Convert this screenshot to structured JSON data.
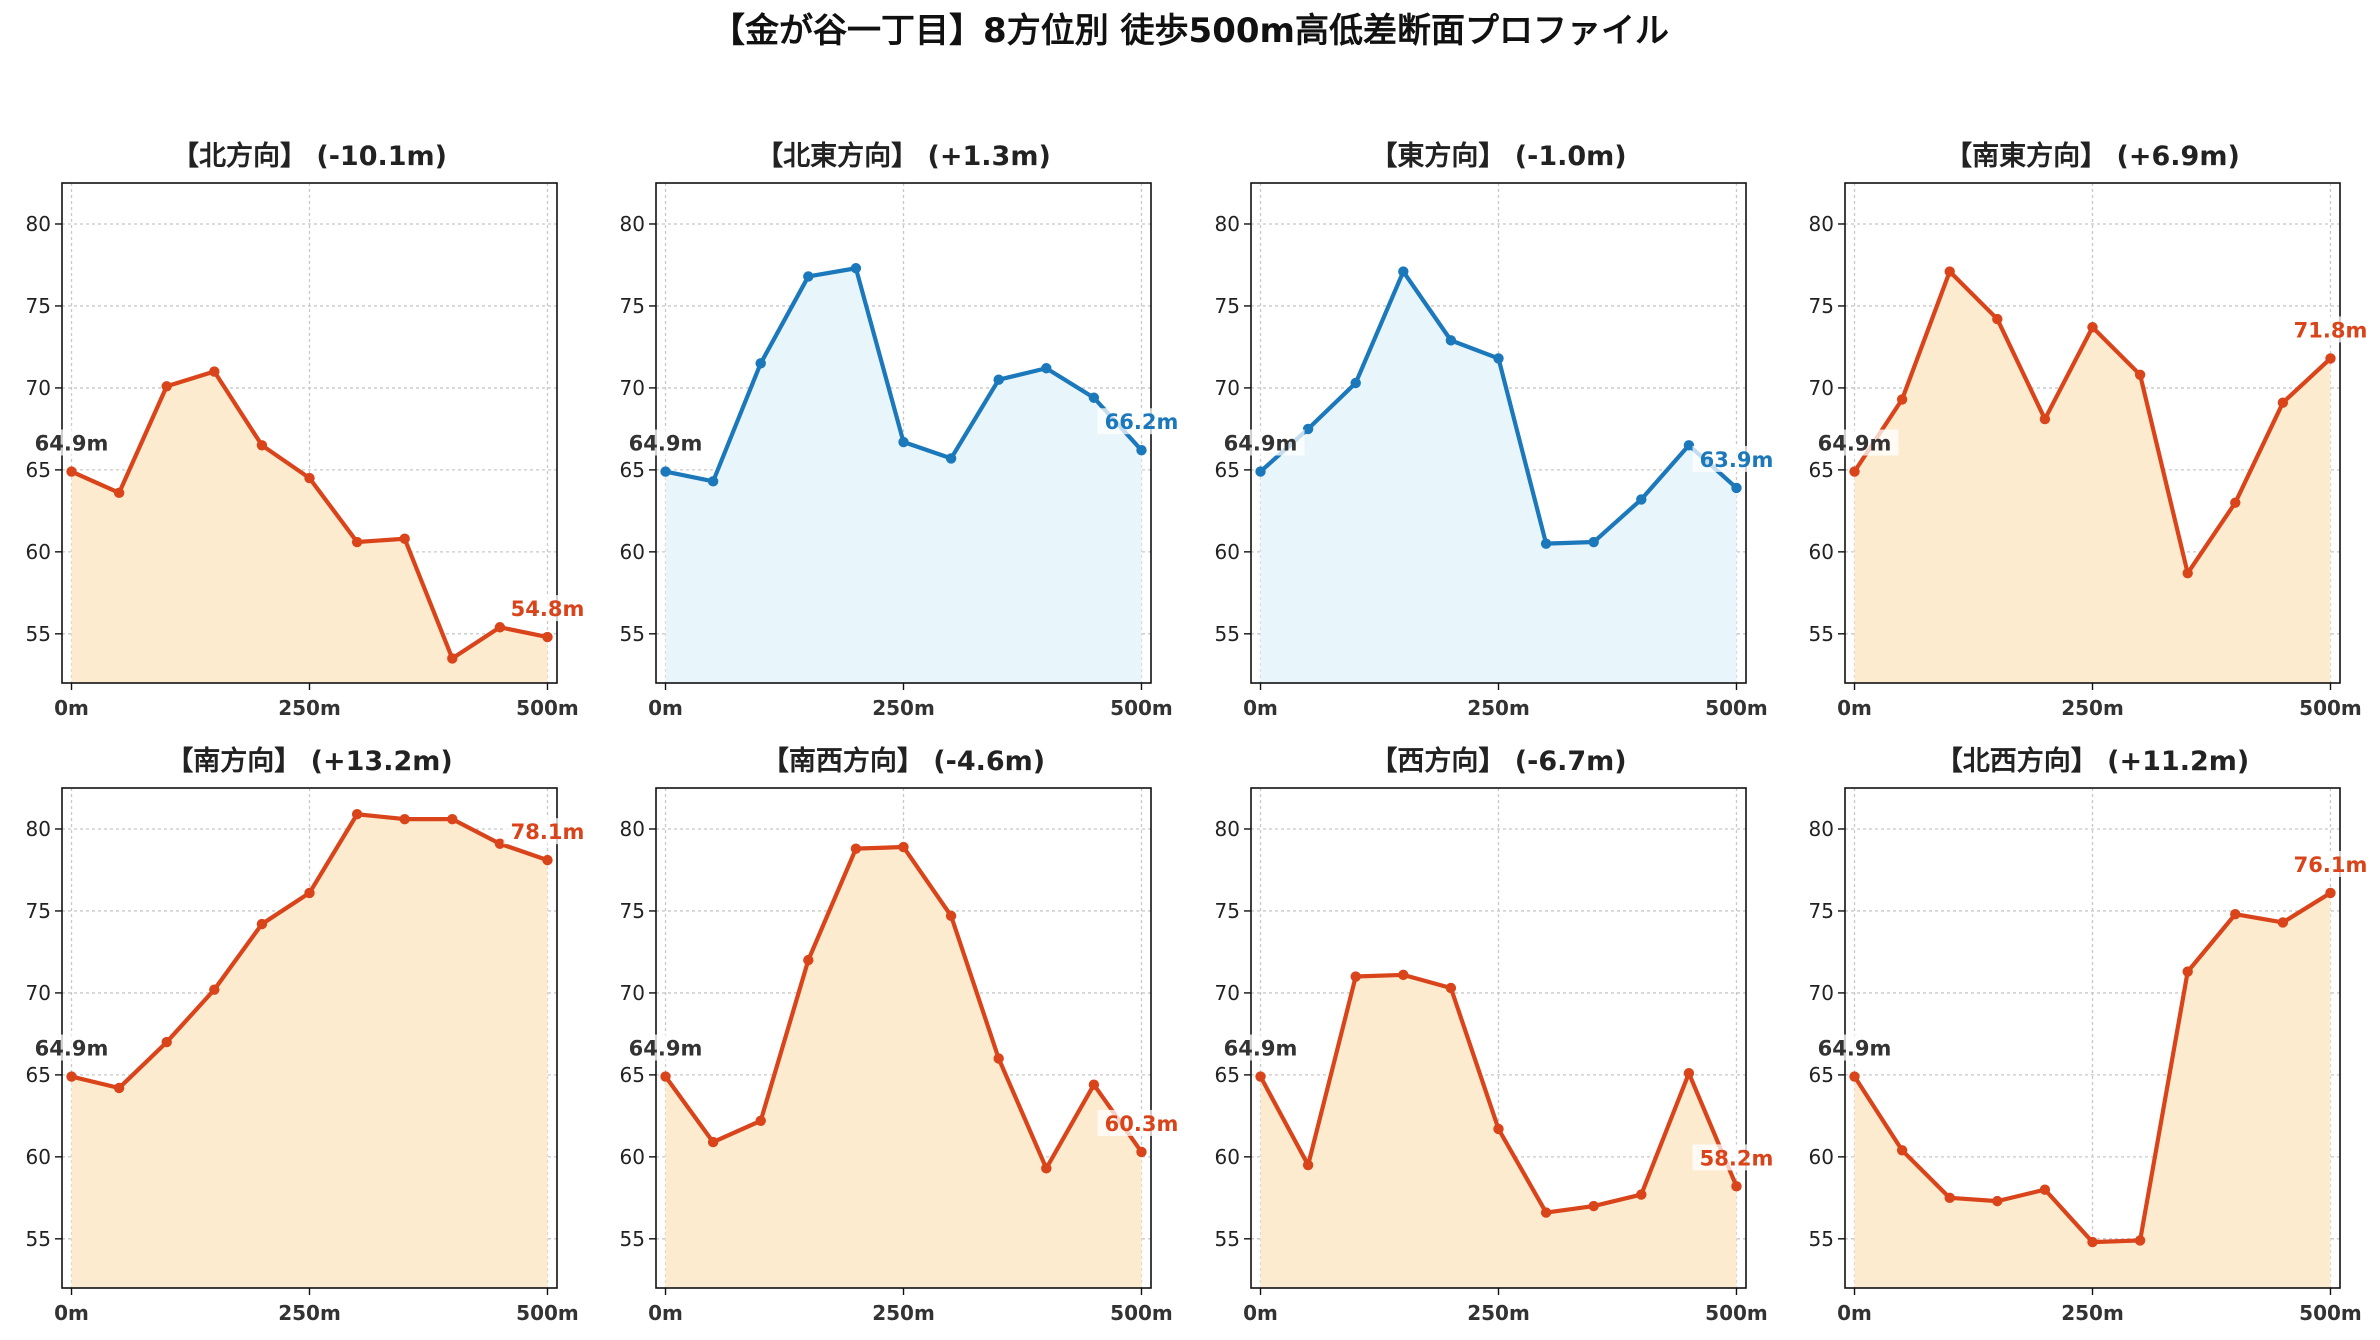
{
  "suptitle": "【金が谷一丁目】8方位別 徒歩500m高低差断面プロファイル",
  "colors": {
    "down_line": "#d9441a",
    "down_fill": "#fdebd0",
    "up_line": "#1a78bb",
    "up_fill": "#e8f5fb",
    "start_label": "#333333"
  },
  "chart_data": [
    {
      "type": "area",
      "title": "【北方向】 (-10.1m)",
      "color_scheme": "orange",
      "x": [
        0,
        50,
        100,
        150,
        200,
        250,
        300,
        350,
        400,
        450,
        500
      ],
      "values": [
        64.9,
        63.6,
        70.1,
        71.0,
        66.5,
        64.5,
        60.6,
        60.8,
        53.5,
        55.4,
        54.8
      ],
      "start_label": "64.9m",
      "end_label": "54.8m",
      "xticks": [
        "0m",
        "250m",
        "500m"
      ],
      "yticks": [
        55,
        60,
        65,
        70,
        75,
        80
      ],
      "ylim": [
        52,
        82.5
      ],
      "xlim": [
        -10,
        510
      ],
      "grid": true
    },
    {
      "type": "area",
      "title": "【北東方向】 (+1.3m)",
      "color_scheme": "blue",
      "x": [
        0,
        50,
        100,
        150,
        200,
        250,
        300,
        350,
        400,
        450,
        500
      ],
      "values": [
        64.9,
        64.3,
        71.5,
        76.8,
        77.3,
        66.7,
        65.7,
        70.5,
        71.2,
        69.4,
        66.2
      ],
      "start_label": "64.9m",
      "end_label": "66.2m",
      "xticks": [
        "0m",
        "250m",
        "500m"
      ],
      "yticks": [
        55,
        60,
        65,
        70,
        75,
        80
      ],
      "ylim": [
        52,
        82.5
      ],
      "xlim": [
        -10,
        510
      ],
      "grid": true
    },
    {
      "type": "area",
      "title": "【東方向】 (-1.0m)",
      "color_scheme": "blue",
      "x": [
        0,
        50,
        100,
        150,
        200,
        250,
        300,
        350,
        400,
        450,
        500
      ],
      "values": [
        64.9,
        67.5,
        70.3,
        77.1,
        72.9,
        71.8,
        60.5,
        60.6,
        63.2,
        66.5,
        63.9
      ],
      "start_label": "64.9m",
      "end_label": "63.9m",
      "xticks": [
        "0m",
        "250m",
        "500m"
      ],
      "yticks": [
        55,
        60,
        65,
        70,
        75,
        80
      ],
      "ylim": [
        52,
        82.5
      ],
      "xlim": [
        -10,
        510
      ],
      "grid": true
    },
    {
      "type": "area",
      "title": "【南東方向】 (+6.9m)",
      "color_scheme": "orange",
      "x": [
        0,
        50,
        100,
        150,
        200,
        250,
        300,
        350,
        400,
        450,
        500
      ],
      "values": [
        64.9,
        69.3,
        77.1,
        74.2,
        68.1,
        73.7,
        70.8,
        58.7,
        63.0,
        69.1,
        71.8
      ],
      "start_label": "64.9m",
      "end_label": "71.8m",
      "xticks": [
        "0m",
        "250m",
        "500m"
      ],
      "yticks": [
        55,
        60,
        65,
        70,
        75,
        80
      ],
      "ylim": [
        52,
        82.5
      ],
      "xlim": [
        -10,
        510
      ],
      "grid": true
    },
    {
      "type": "area",
      "title": "【南方向】 (+13.2m)",
      "color_scheme": "orange",
      "x": [
        0,
        50,
        100,
        150,
        200,
        250,
        300,
        350,
        400,
        450,
        500
      ],
      "values": [
        64.9,
        64.2,
        67.0,
        70.2,
        74.2,
        76.1,
        80.9,
        80.6,
        80.6,
        79.1,
        78.1
      ],
      "start_label": "64.9m",
      "end_label": "78.1m",
      "xticks": [
        "0m",
        "250m",
        "500m"
      ],
      "yticks": [
        55,
        60,
        65,
        70,
        75,
        80
      ],
      "ylim": [
        52,
        82.5
      ],
      "xlim": [
        -10,
        510
      ],
      "grid": true
    },
    {
      "type": "area",
      "title": "【南西方向】 (-4.6m)",
      "color_scheme": "orange",
      "x": [
        0,
        50,
        100,
        150,
        200,
        250,
        300,
        350,
        400,
        450,
        500
      ],
      "values": [
        64.9,
        60.9,
        62.2,
        72.0,
        78.8,
        78.9,
        74.7,
        66.0,
        59.3,
        64.4,
        60.3
      ],
      "start_label": "64.9m",
      "end_label": "60.3m",
      "xticks": [
        "0m",
        "250m",
        "500m"
      ],
      "yticks": [
        55,
        60,
        65,
        70,
        75,
        80
      ],
      "ylim": [
        52,
        82.5
      ],
      "xlim": [
        -10,
        510
      ],
      "grid": true
    },
    {
      "type": "area",
      "title": "【西方向】 (-6.7m)",
      "color_scheme": "orange",
      "x": [
        0,
        50,
        100,
        150,
        200,
        250,
        300,
        350,
        400,
        450,
        500
      ],
      "values": [
        64.9,
        59.5,
        71.0,
        71.1,
        70.3,
        61.7,
        56.6,
        57.0,
        57.7,
        65.1,
        58.2
      ],
      "start_label": "64.9m",
      "end_label": "58.2m",
      "xticks": [
        "0m",
        "250m",
        "500m"
      ],
      "yticks": [
        55,
        60,
        65,
        70,
        75,
        80
      ],
      "ylim": [
        52,
        82.5
      ],
      "xlim": [
        -10,
        510
      ],
      "grid": true
    },
    {
      "type": "area",
      "title": "【北西方向】 (+11.2m)",
      "color_scheme": "orange",
      "x": [
        0,
        50,
        100,
        150,
        200,
        250,
        300,
        350,
        400,
        450,
        500
      ],
      "values": [
        64.9,
        60.4,
        57.5,
        57.3,
        58.0,
        54.8,
        54.9,
        71.3,
        74.8,
        74.3,
        76.1
      ],
      "start_label": "64.9m",
      "end_label": "76.1m",
      "xticks": [
        "0m",
        "250m",
        "500m"
      ],
      "yticks": [
        55,
        60,
        65,
        70,
        75,
        80
      ],
      "ylim": [
        52,
        82.5
      ],
      "xlim": [
        -10,
        510
      ],
      "grid": true
    }
  ]
}
